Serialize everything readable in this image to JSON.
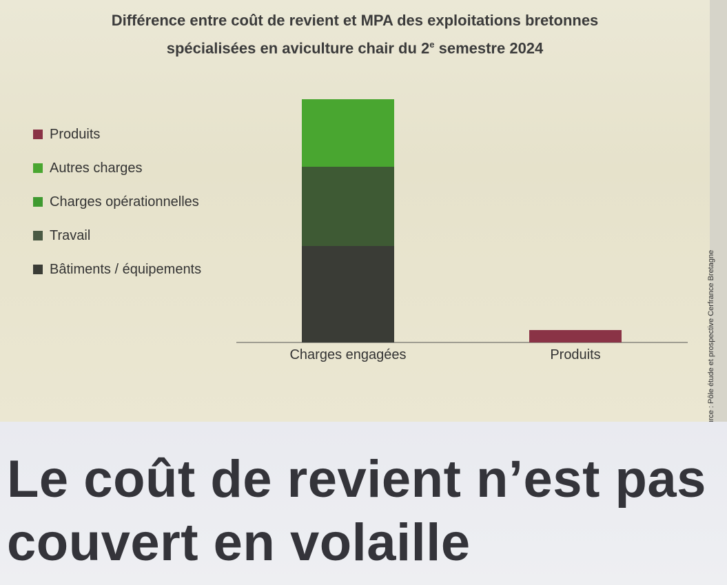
{
  "chart_data": {
    "type": "bar",
    "stacked": true,
    "title_line1": "Différence entre coût de revient et MPA des exploitations bretonnes",
    "title_line2": "spécialisées en aviculture chair du 2",
    "title_sup": "e",
    "title_line2_end": " semestre 2024",
    "categories": [
      "Charges engagées",
      "Produits"
    ],
    "series": [
      {
        "name": "Bâtiments / équipements",
        "color": "#3a3c36",
        "values": [
          140,
          0
        ]
      },
      {
        "name": "Travail",
        "color": "#3e5a34",
        "values": [
          115,
          0
        ]
      },
      {
        "name": "Charges opérationnelles",
        "color": "#3f8a31",
        "values": [
          0,
          0
        ]
      },
      {
        "name": "Autres charges",
        "color": "#49a630",
        "values": [
          98,
          0
        ]
      },
      {
        "name": "Produits",
        "color": "#8a3346",
        "values": [
          0,
          18
        ]
      }
    ],
    "legend_order": [
      "Produits",
      "Autres charges",
      "Charges opérationnelles",
      "Travail",
      "Bâtiments / équipements"
    ],
    "legend_colors": [
      "#8a3346",
      "#49a630",
      "#3f9a30",
      "#4a5a44",
      "#3a3c36"
    ],
    "ylim": [
      0,
      353
    ],
    "grid": false,
    "legend_position": "left"
  },
  "source": "Source : Pôle étude et prospective Cerfrance Bretagne",
  "headline": "Le coût de revient n’est pas couvert en volaille"
}
